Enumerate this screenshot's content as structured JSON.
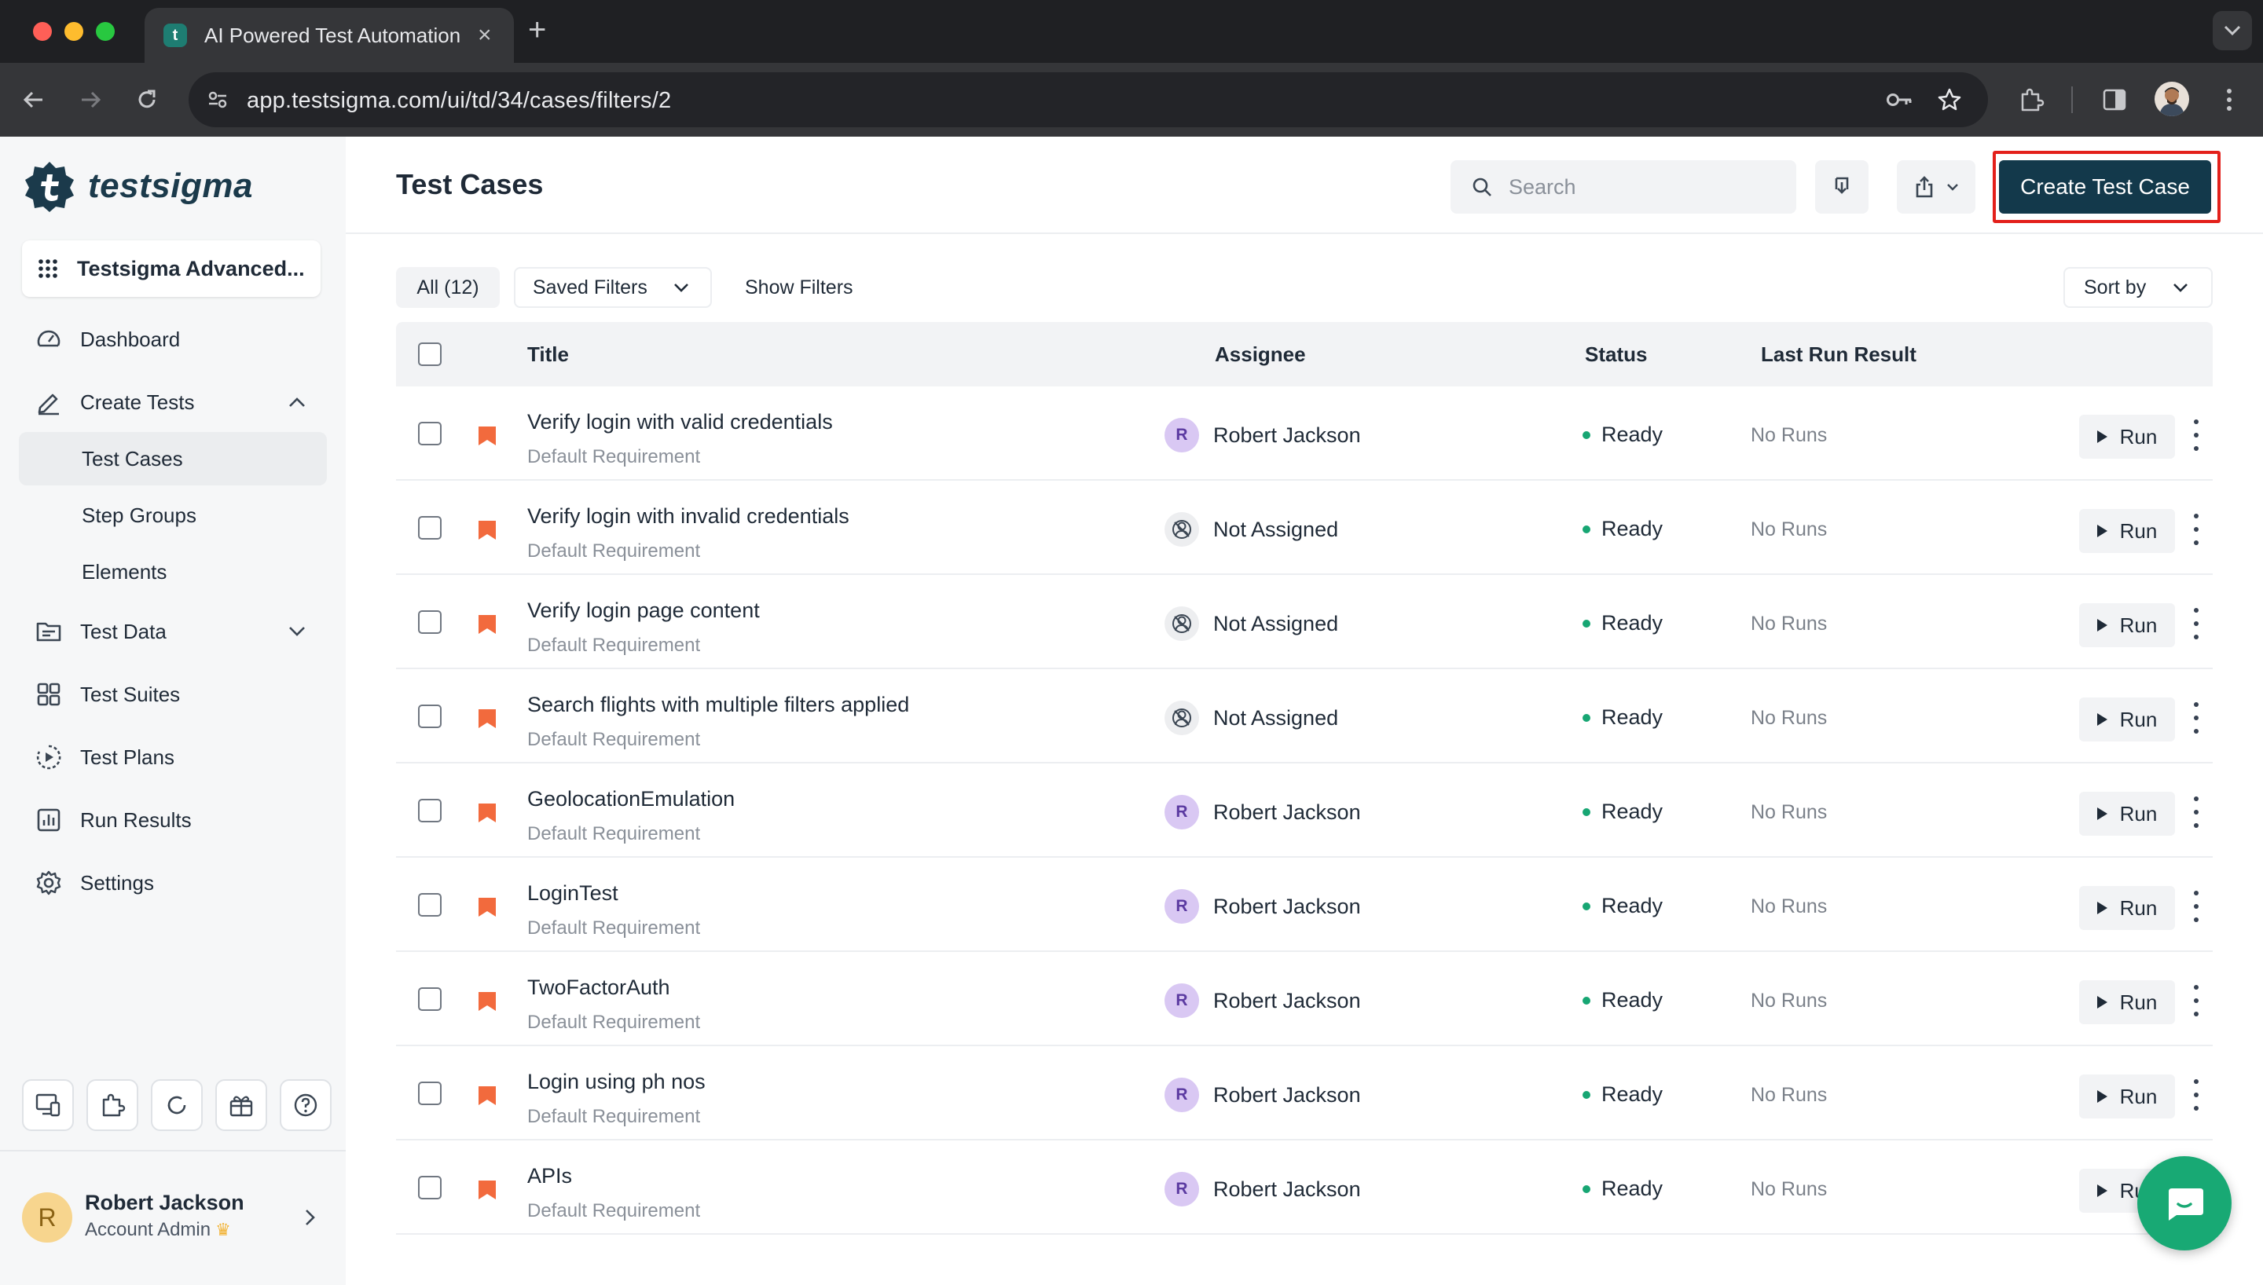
{
  "browser": {
    "tab_title": "AI Powered Test Automation",
    "tab_favicon": "t",
    "url": "app.testsigma.com/ui/td/34/cases/filters/2"
  },
  "sidebar": {
    "logo_text": "testsigma",
    "workspace": "Testsigma Advanced...",
    "nav": {
      "dashboard": "Dashboard",
      "create_tests": "Create Tests",
      "test_cases": "Test Cases",
      "step_groups": "Step Groups",
      "elements": "Elements",
      "test_data": "Test Data",
      "test_suites": "Test Suites",
      "test_plans": "Test Plans",
      "run_results": "Run Results",
      "settings": "Settings"
    },
    "user": {
      "initial": "R",
      "name": "Robert Jackson",
      "role": "Account Admin"
    }
  },
  "header": {
    "title": "Test Cases",
    "search_placeholder": "Search",
    "create_button": "Create Test Case"
  },
  "filters": {
    "all": "All (12)",
    "saved_filters": "Saved Filters",
    "show_filters": "Show Filters",
    "sort_by": "Sort by"
  },
  "table": {
    "columns": {
      "title": "Title",
      "assignee": "Assignee",
      "status": "Status",
      "last_run": "Last Run Result"
    },
    "rows": [
      {
        "title": "Verify login with valid credentials",
        "requirement": "Default Requirement",
        "assignee": "Robert Jackson",
        "assignee_initial": "R",
        "status": "Ready",
        "last_run": "No Runs",
        "run": "Run"
      },
      {
        "title": "Verify login with invalid credentials",
        "requirement": "Default Requirement",
        "assignee": "Not Assigned",
        "assignee_initial": "",
        "status": "Ready",
        "last_run": "No Runs",
        "run": "Run"
      },
      {
        "title": "Verify login page content",
        "requirement": "Default Requirement",
        "assignee": "Not Assigned",
        "assignee_initial": "",
        "status": "Ready",
        "last_run": "No Runs",
        "run": "Run"
      },
      {
        "title": "Search flights with multiple filters applied",
        "requirement": "Default Requirement",
        "assignee": "Not Assigned",
        "assignee_initial": "",
        "status": "Ready",
        "last_run": "No Runs",
        "run": "Run"
      },
      {
        "title": "GeolocationEmulation",
        "requirement": "Default Requirement",
        "assignee": "Robert Jackson",
        "assignee_initial": "R",
        "status": "Ready",
        "last_run": "No Runs",
        "run": "Run"
      },
      {
        "title": "LoginTest",
        "requirement": "Default Requirement",
        "assignee": "Robert Jackson",
        "assignee_initial": "R",
        "status": "Ready",
        "last_run": "No Runs",
        "run": "Run"
      },
      {
        "title": "TwoFactorAuth",
        "requirement": "Default Requirement",
        "assignee": "Robert Jackson",
        "assignee_initial": "R",
        "status": "Ready",
        "last_run": "No Runs",
        "run": "Run"
      },
      {
        "title": "Login using ph nos",
        "requirement": "Default Requirement",
        "assignee": "Robert Jackson",
        "assignee_initial": "R",
        "status": "Ready",
        "last_run": "No Runs",
        "run": "Run"
      },
      {
        "title": "APIs",
        "requirement": "Default Requirement",
        "assignee": "Robert Jackson",
        "assignee_initial": "R",
        "status": "Ready",
        "last_run": "No Runs",
        "run": "Run"
      }
    ]
  },
  "colors": {
    "primary": "#13394b",
    "highlight": "#e3201b",
    "ready": "#17a673",
    "priority_flag": "#f26a3d",
    "chat": "#18a974"
  },
  "icons": {
    "flag": "bookmark-flag-icon",
    "not_assigned": "user-off-icon",
    "chat": "chat-icon"
  }
}
